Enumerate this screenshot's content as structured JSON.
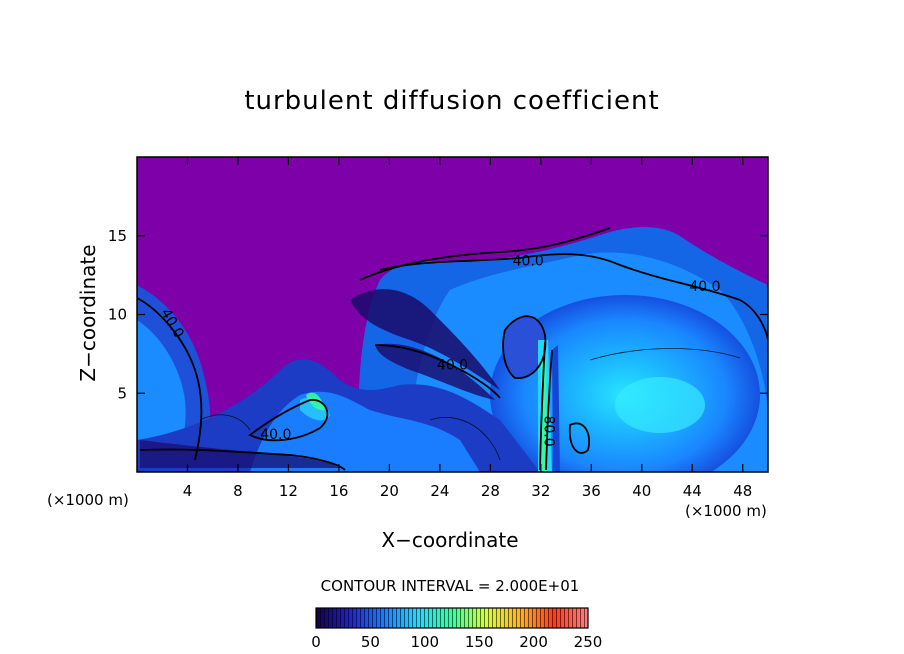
{
  "chart_data": {
    "type": "heatmap",
    "title": "turbulent diffusion coefficient",
    "xlabel": "X−coordinate",
    "ylabel": "Z−coordinate",
    "x_units": "(×1000 m)",
    "y_units": "(×1000 m)",
    "xlim": [
      0,
      50
    ],
    "ylim": [
      0,
      20
    ],
    "xticks": [
      4,
      8,
      12,
      16,
      20,
      24,
      28,
      32,
      36,
      40,
      44,
      48
    ],
    "yticks": [
      5,
      10,
      15
    ],
    "contour_interval_text": "CONTOUR INTERVAL = 2.000E+01",
    "contour_labels": [
      {
        "text": "40.0",
        "x": 31,
        "z": 13.1
      },
      {
        "text": "40.0",
        "x": 45,
        "z": 11.5
      },
      {
        "text": "40.0",
        "x": 2.5,
        "z": 9.3
      },
      {
        "text": "40.0",
        "x": 25,
        "z": 6.5
      },
      {
        "text": "40.0",
        "x": 11,
        "z": 2.1
      },
      {
        "text": "80.0",
        "x": 32.3,
        "z": 2.6
      }
    ],
    "colorbar": {
      "ticks": [
        0,
        50,
        100,
        150,
        200,
        250
      ],
      "range": [
        0,
        250
      ],
      "colors": [
        "#14004a",
        "#2222c8",
        "#1a7cff",
        "#22d8ff",
        "#35ff9a",
        "#d4ff3a",
        "#ffb21a",
        "#ff3a1a",
        "#ff7f7f"
      ]
    },
    "background_color": "#7d00a8"
  }
}
